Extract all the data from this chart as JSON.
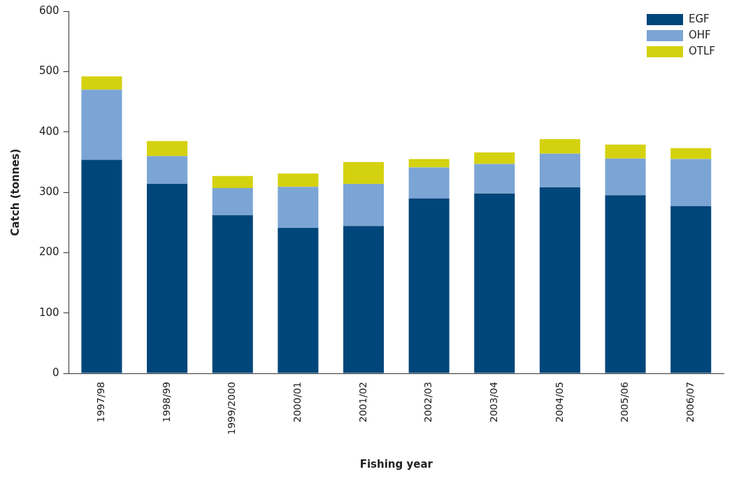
{
  "chart_data": {
    "type": "bar",
    "stacked": true,
    "xlabel": "Fishing year",
    "ylabel": "Catch (tonnes)",
    "categories": [
      "1997/98",
      "1998/99",
      "1999/2000",
      "2000/01",
      "2001/02",
      "2002/03",
      "2003/04",
      "2004/05",
      "2005/06",
      "2006/07"
    ],
    "series": [
      {
        "name": "EGF",
        "color": "#00467a",
        "values": [
          354,
          314,
          262,
          241,
          244,
          290,
          298,
          308,
          295,
          277
        ]
      },
      {
        "name": "OHF",
        "color": "#7ba5d5",
        "values": [
          116,
          46,
          45,
          68,
          70,
          51,
          49,
          56,
          61,
          78
        ]
      },
      {
        "name": "OTLF",
        "color": "#d4d20f",
        "values": [
          22,
          25,
          20,
          22,
          36,
          14,
          19,
          24,
          23,
          18
        ]
      }
    ],
    "ylim": [
      0,
      600
    ],
    "yticks": [
      0,
      100,
      200,
      300,
      400,
      500,
      600
    ],
    "grid": false,
    "legend": "top right"
  }
}
